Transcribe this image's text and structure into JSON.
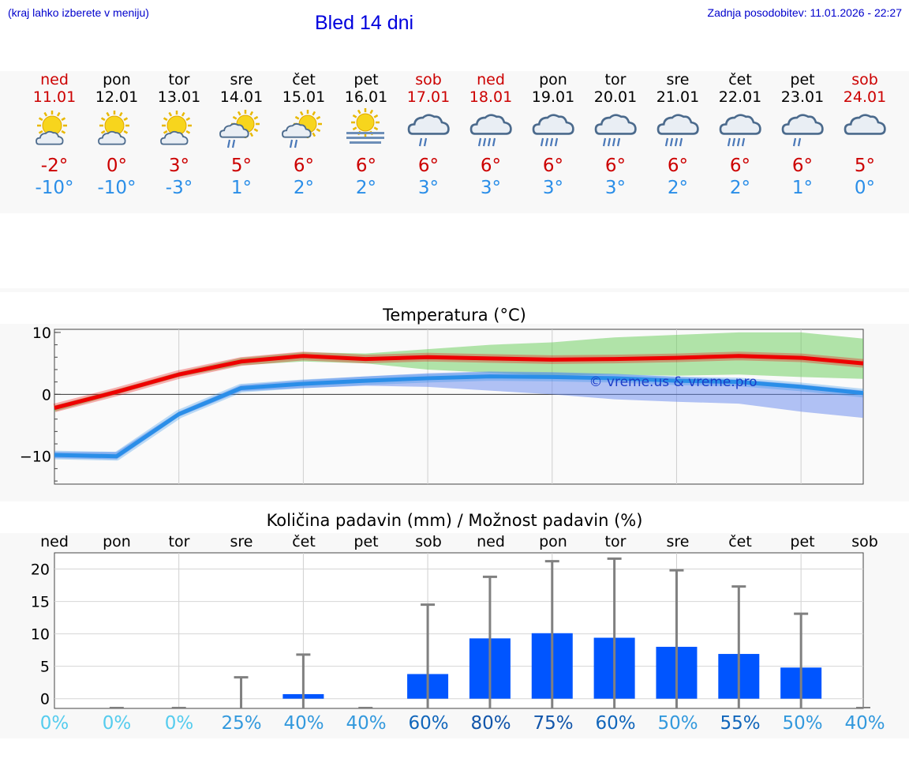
{
  "header": {
    "left_note": "(kraj lahko izberete v meniju)",
    "title": "Bled 14 dni",
    "updated": "Zadnja posodobitev: 11.01.2026 - 22:27"
  },
  "colors": {
    "weekend": "#cc0000",
    "tmax": "#cc0000",
    "tmin": "#2a8ee8",
    "bar": "#0055ff",
    "whisker": "#808080"
  },
  "days": [
    {
      "name": "ned",
      "date": "11.01",
      "weekend": true,
      "icon": "sun-cloud-icon",
      "tmax": "-2°",
      "tmin": "-10°"
    },
    {
      "name": "pon",
      "date": "12.01",
      "weekend": false,
      "icon": "sun-cloud-icon",
      "tmax": "0°",
      "tmin": "-10°"
    },
    {
      "name": "tor",
      "date": "13.01",
      "weekend": false,
      "icon": "sun-cloud-icon",
      "tmax": "3°",
      "tmin": "-3°"
    },
    {
      "name": "sre",
      "date": "14.01",
      "weekend": false,
      "icon": "sun-cloud-rain-icon",
      "tmax": "5°",
      "tmin": "1°"
    },
    {
      "name": "čet",
      "date": "15.01",
      "weekend": false,
      "icon": "sun-cloud-rain-icon",
      "tmax": "6°",
      "tmin": "2°"
    },
    {
      "name": "pet",
      "date": "16.01",
      "weekend": false,
      "icon": "sun-fog-icon",
      "tmax": "6°",
      "tmin": "2°"
    },
    {
      "name": "sob",
      "date": "17.01",
      "weekend": true,
      "icon": "cloud-rain-icon",
      "tmax": "6°",
      "tmin": "3°"
    },
    {
      "name": "ned",
      "date": "18.01",
      "weekend": true,
      "icon": "cloud-heavy-rain-icon",
      "tmax": "6°",
      "tmin": "3°"
    },
    {
      "name": "pon",
      "date": "19.01",
      "weekend": false,
      "icon": "cloud-heavy-rain-icon",
      "tmax": "6°",
      "tmin": "3°"
    },
    {
      "name": "tor",
      "date": "20.01",
      "weekend": false,
      "icon": "cloud-heavy-rain-icon",
      "tmax": "6°",
      "tmin": "3°"
    },
    {
      "name": "sre",
      "date": "21.01",
      "weekend": false,
      "icon": "cloud-heavy-rain-icon",
      "tmax": "6°",
      "tmin": "2°"
    },
    {
      "name": "čet",
      "date": "22.01",
      "weekend": false,
      "icon": "cloud-heavy-rain-icon",
      "tmax": "6°",
      "tmin": "2°"
    },
    {
      "name": "pet",
      "date": "23.01",
      "weekend": false,
      "icon": "cloud-rain-icon",
      "tmax": "6°",
      "tmin": "1°"
    },
    {
      "name": "sob",
      "date": "24.01",
      "weekend": true,
      "icon": "cloud-icon",
      "tmax": "5°",
      "tmin": "0°"
    }
  ],
  "chart_data": [
    {
      "type": "line",
      "title": "Temperatura (°C)",
      "x": [
        0,
        1,
        2,
        3,
        4,
        5,
        6,
        7,
        8,
        9,
        10,
        11,
        12,
        13
      ],
      "ylim": [
        -14.5,
        10.5
      ],
      "yticks": [
        "10",
        "0",
        "−10"
      ],
      "ytick_values": [
        10,
        0,
        -10
      ],
      "series": [
        {
          "name": "max",
          "color": "#ee0000",
          "values": [
            -2.2,
            0.4,
            3.2,
            5.3,
            6.2,
            5.7,
            6.0,
            5.8,
            5.6,
            5.7,
            5.9,
            6.2,
            5.9,
            5.0
          ],
          "band_low": [
            -2.8,
            0.0,
            2.8,
            4.7,
            5.3,
            5.0,
            4.0,
            3.5,
            3.0,
            3.2,
            3.0,
            3.2,
            2.8,
            2.5
          ],
          "band_high": [
            -1.8,
            0.8,
            3.6,
            5.9,
            6.8,
            6.6,
            7.3,
            8.0,
            8.4,
            9.2,
            9.6,
            10.0,
            10.0,
            9.0
          ]
        },
        {
          "name": "min",
          "color": "#2a8ee8",
          "values": [
            -9.8,
            -10.0,
            -3.2,
            1.0,
            1.7,
            2.2,
            2.6,
            2.9,
            2.8,
            2.6,
            2.2,
            2.0,
            1.2,
            0.2
          ],
          "band_low": [
            -10.3,
            -10.5,
            -3.6,
            0.5,
            1.0,
            1.4,
            1.2,
            0.6,
            0.0,
            -0.8,
            -1.2,
            -1.5,
            -2.8,
            -3.8
          ],
          "band_high": [
            -9.3,
            -9.3,
            -2.8,
            1.5,
            2.3,
            2.9,
            3.4,
            3.7,
            3.6,
            3.3,
            2.8,
            2.4,
            1.6,
            0.6
          ]
        }
      ],
      "annotation": "© vreme.us & vreme.pro"
    },
    {
      "type": "bar",
      "title": "Količina padavin (mm) / Možnost padavin (%)",
      "categories": [
        "ned",
        "pon",
        "tor",
        "sre",
        "čet",
        "pet",
        "sob",
        "ned",
        "pon",
        "tor",
        "sre",
        "čet",
        "pet",
        "sob"
      ],
      "values": [
        0,
        0,
        0,
        0,
        0.7,
        0,
        3.8,
        9.3,
        10.1,
        9.4,
        8.0,
        6.9,
        4.8,
        0
      ],
      "whisker_max": [
        0,
        0,
        0,
        3.3,
        6.8,
        0,
        14.5,
        18.8,
        21.2,
        21.6,
        19.8,
        17.3,
        13.1,
        0
      ],
      "probability": [
        "0%",
        "0%",
        "0%",
        "25%",
        "40%",
        "40%",
        "60%",
        "80%",
        "75%",
        "60%",
        "50%",
        "55%",
        "50%",
        "40%"
      ],
      "probability_colors": [
        "#55ccee",
        "#55ccee",
        "#55ccee",
        "#3399dd",
        "#3399dd",
        "#3399dd",
        "#1166bb",
        "#1155aa",
        "#1155aa",
        "#1166bb",
        "#3399dd",
        "#1166bb",
        "#3399dd",
        "#3399dd"
      ],
      "ylim": [
        -1.5,
        22.5
      ],
      "yticks": [
        "20",
        "15",
        "10",
        "5",
        "0"
      ],
      "ytick_values": [
        20,
        15,
        10,
        5,
        0
      ]
    }
  ]
}
